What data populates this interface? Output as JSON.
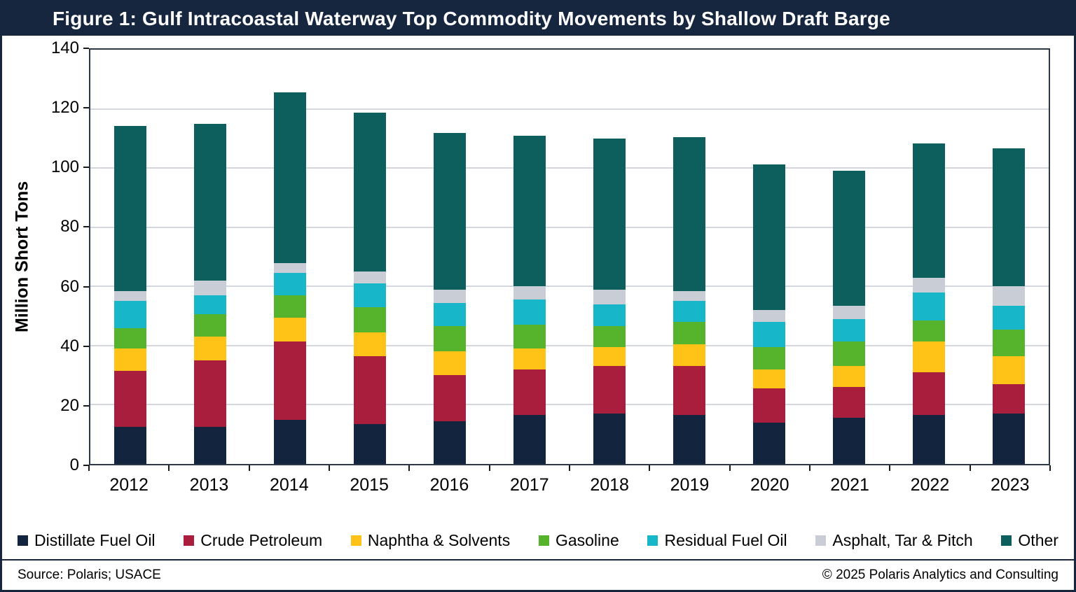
{
  "figure": {
    "title": "Figure 1: Gulf Intracoastal Waterway Top Commodity Movements by Shallow Draft Barge",
    "source": "Source: Polaris; USACE",
    "copyright": "© 2025 Polaris Analytics and Consulting"
  },
  "chart_data": {
    "type": "bar",
    "stacked": true,
    "title": "Figure 1: Gulf Intracoastal Waterway Top Commodity Movements by Shallow Draft Barge",
    "xlabel": "",
    "ylabel": "Million Short Tons",
    "ylim": [
      0,
      140
    ],
    "ytick_step": 20,
    "grid": true,
    "legend_position": "bottom",
    "categories": [
      "2012",
      "2013",
      "2014",
      "2015",
      "2016",
      "2017",
      "2018",
      "2019",
      "2020",
      "2021",
      "2022",
      "2023"
    ],
    "series": [
      {
        "name": "Distillate Fuel Oil",
        "color": "#13243F",
        "values": [
          12.5,
          12.5,
          15.0,
          13.5,
          14.5,
          16.5,
          17.0,
          16.5,
          14.0,
          15.5,
          16.5,
          17.0
        ]
      },
      {
        "name": "Crude Petroleum",
        "color": "#A91E3C",
        "values": [
          19.0,
          22.5,
          26.5,
          23.0,
          15.5,
          15.5,
          16.0,
          16.5,
          11.5,
          10.5,
          14.5,
          10.0
        ]
      },
      {
        "name": "Naphtha & Solvents",
        "color": "#FFC216",
        "values": [
          7.5,
          8.0,
          8.0,
          8.0,
          8.0,
          7.0,
          6.5,
          7.5,
          6.5,
          7.0,
          10.5,
          9.5
        ]
      },
      {
        "name": "Gasoline",
        "color": "#55B32C",
        "values": [
          7.0,
          7.5,
          7.5,
          8.5,
          8.5,
          8.0,
          7.0,
          7.5,
          7.5,
          8.5,
          7.0,
          9.0
        ]
      },
      {
        "name": "Residual Fuel Oil",
        "color": "#17B6C9",
        "values": [
          9.0,
          6.5,
          7.5,
          8.0,
          8.0,
          8.5,
          7.5,
          7.0,
          8.5,
          7.5,
          9.5,
          8.0
        ]
      },
      {
        "name": "Asphalt, Tar & Pitch",
        "color": "#C9CED6",
        "values": [
          3.5,
          5.0,
          3.5,
          4.0,
          4.5,
          4.5,
          5.0,
          3.5,
          4.0,
          4.5,
          5.0,
          6.5
        ]
      },
      {
        "name": "Other",
        "color": "#0C5F5C",
        "values": [
          55.8,
          53.0,
          57.5,
          53.7,
          52.8,
          51.0,
          51.0,
          52.0,
          49.3,
          45.5,
          45.3,
          46.7
        ]
      }
    ]
  }
}
